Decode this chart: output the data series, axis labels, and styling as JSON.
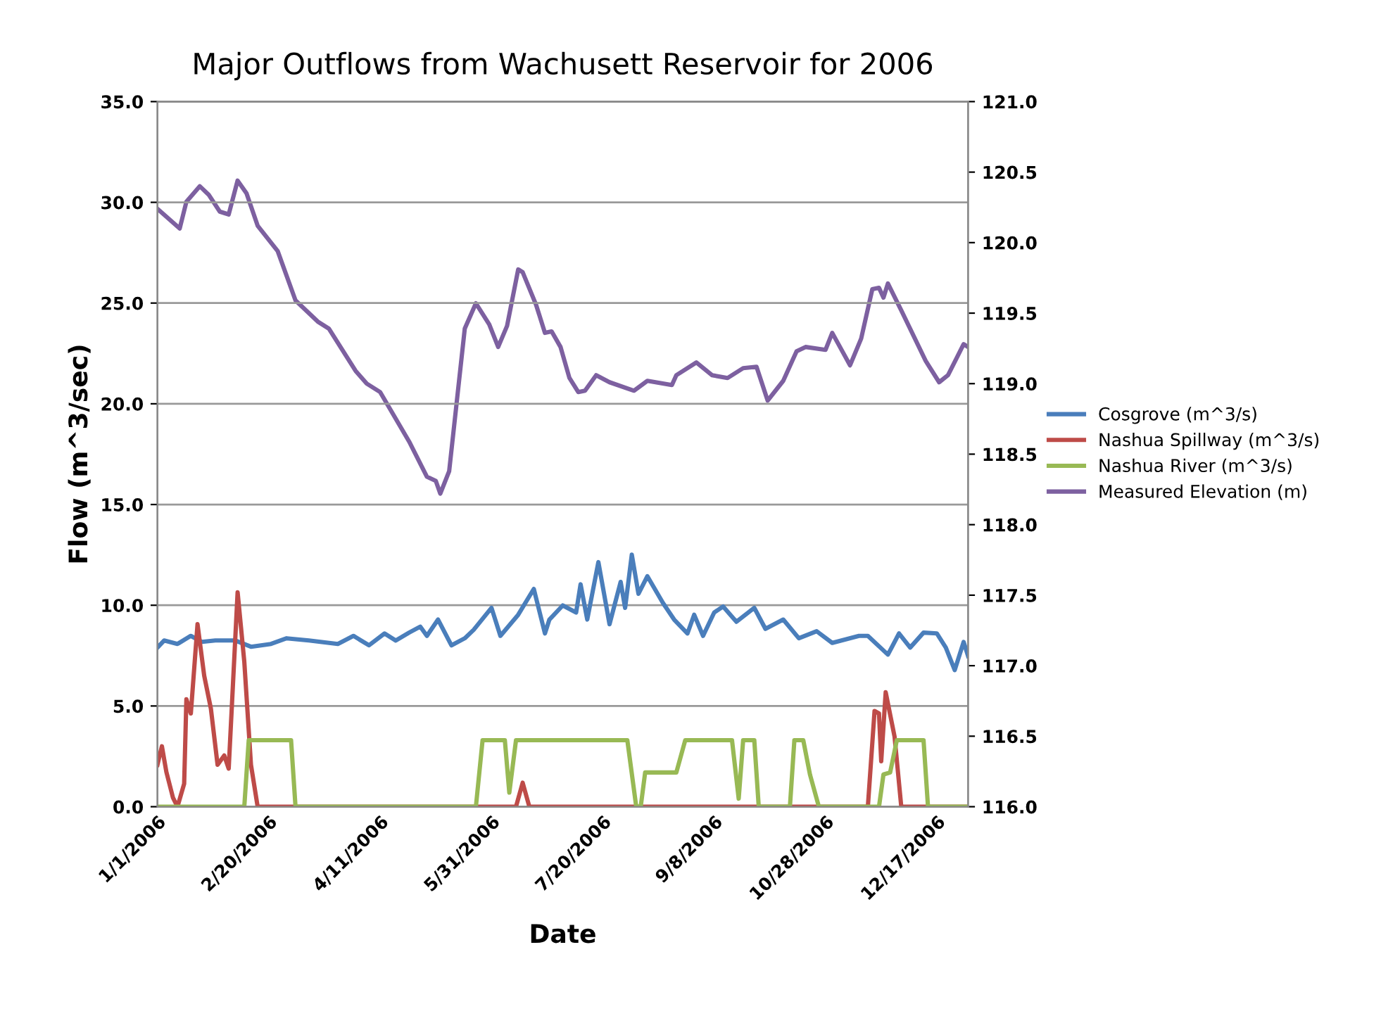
{
  "chart_data": {
    "type": "line",
    "title": "Major Outflows from Wachusett Reservoir for 2006",
    "xlabel": "Date",
    "ylabel": "Flow (m^3/sec)",
    "xlim": [
      "2006-01-01",
      "2006-12-31"
    ],
    "xticks": [
      {
        "value": "2006-01-01",
        "label": "1/1/2006"
      },
      {
        "value": "2006-02-20",
        "label": "2/20/2006"
      },
      {
        "value": "2006-04-11",
        "label": "4/11/2006"
      },
      {
        "value": "2006-05-31",
        "label": "5/31/2006"
      },
      {
        "value": "2006-07-20",
        "label": "7/20/2006"
      },
      {
        "value": "2006-09-08",
        "label": "9/8/2006"
      },
      {
        "value": "2006-10-28",
        "label": "10/28/2006"
      },
      {
        "value": "2006-12-17",
        "label": "12/17/2006"
      }
    ],
    "ylim": [
      0,
      35
    ],
    "yticks": [
      {
        "value": 0,
        "label": "0.0"
      },
      {
        "value": 5,
        "label": "5.0"
      },
      {
        "value": 10,
        "label": "10.0"
      },
      {
        "value": 15,
        "label": "15.0"
      },
      {
        "value": 20,
        "label": "20.0"
      },
      {
        "value": 25,
        "label": "25.0"
      },
      {
        "value": 30,
        "label": "30.0"
      },
      {
        "value": 35,
        "label": "35.0"
      }
    ],
    "y2lim": [
      116,
      121
    ],
    "y2ticks": [
      {
        "value": 116,
        "label": "116.0"
      },
      {
        "value": 116.5,
        "label": "116.5"
      },
      {
        "value": 117,
        "label": "117.0"
      },
      {
        "value": 117.5,
        "label": "117.5"
      },
      {
        "value": 118,
        "label": "118.0"
      },
      {
        "value": 118.5,
        "label": "118.5"
      },
      {
        "value": 119,
        "label": "119.0"
      },
      {
        "value": 119.5,
        "label": "119.5"
      },
      {
        "value": 120,
        "label": "120.0"
      },
      {
        "value": 120.5,
        "label": "120.5"
      },
      {
        "value": 121,
        "label": "121.0"
      }
    ],
    "grid": "y",
    "legend": "right",
    "marker": "none",
    "line_style": "solid",
    "series": [
      {
        "name": "Cosgrove (m^3/s)",
        "color": "#4a7ebb",
        "x": [
          "2006-01-01",
          "2006-01-04",
          "2006-01-10",
          "2006-01-16",
          "2006-01-21",
          "2006-01-27",
          "2006-02-05",
          "2006-02-12",
          "2006-02-21",
          "2006-02-28",
          "2006-03-10",
          "2006-03-23",
          "2006-03-30",
          "2006-04-06",
          "2006-04-13",
          "2006-04-18",
          "2006-04-24",
          "2006-04-29",
          "2006-05-02",
          "2006-05-07",
          "2006-05-13",
          "2006-05-19",
          "2006-05-23",
          "2006-05-31",
          "2006-06-04",
          "2006-06-12",
          "2006-06-19",
          "2006-06-24",
          "2006-06-26",
          "2006-07-02",
          "2006-07-08",
          "2006-07-10",
          "2006-07-13",
          "2006-07-18",
          "2006-07-23",
          "2006-07-28",
          "2006-07-30",
          "2006-08-02",
          "2006-08-05",
          "2006-08-09",
          "2006-08-16",
          "2006-08-21",
          "2006-08-27",
          "2006-08-30",
          "2006-09-03",
          "2006-09-08",
          "2006-09-12",
          "2006-09-18",
          "2006-09-26",
          "2006-10-01",
          "2006-10-09",
          "2006-10-16",
          "2006-10-24",
          "2006-10-31",
          "2006-11-12",
          "2006-11-16",
          "2006-11-25",
          "2006-11-30",
          "2006-12-05",
          "2006-12-11",
          "2006-12-17",
          "2006-12-21",
          "2006-12-25",
          "2006-12-29",
          "2006-12-31"
        ],
        "values": [
          7.9,
          8.25,
          8.08,
          8.48,
          8.18,
          8.25,
          8.25,
          7.94,
          8.08,
          8.36,
          8.25,
          8.08,
          8.48,
          8.01,
          8.6,
          8.25,
          8.64,
          8.94,
          8.48,
          9.29,
          8.01,
          8.36,
          8.78,
          9.87,
          8.48,
          9.53,
          10.81,
          8.6,
          9.29,
          9.99,
          9.64,
          11.04,
          9.29,
          12.14,
          9.06,
          11.16,
          9.87,
          12.51,
          10.57,
          11.44,
          10.11,
          9.29,
          8.6,
          9.53,
          8.48,
          9.64,
          9.94,
          9.18,
          9.87,
          8.83,
          9.29,
          8.36,
          8.71,
          8.13,
          8.48,
          8.48,
          7.55,
          8.6,
          7.9,
          8.64,
          8.6,
          7.9,
          6.78,
          8.18,
          7.48
        ]
      },
      {
        "name": "Nashua Spillway (m^3/s)",
        "color": "#be4b48",
        "x": [
          "2006-01-01",
          "2006-01-03",
          "2006-01-05",
          "2006-01-08",
          "2006-01-10",
          "2006-01-13",
          "2006-01-14",
          "2006-01-16",
          "2006-01-19",
          "2006-01-22",
          "2006-01-25",
          "2006-01-28",
          "2006-01-31",
          "2006-02-02",
          "2006-02-06",
          "2006-02-09",
          "2006-02-12",
          "2006-02-15",
          "2006-06-11",
          "2006-06-14",
          "2006-06-17",
          "2006-11-16",
          "2006-11-19",
          "2006-11-21",
          "2006-11-22",
          "2006-11-24",
          "2006-11-28",
          "2006-12-01",
          "2006-12-31"
        ],
        "values": [
          2.08,
          3.0,
          1.73,
          0.44,
          0,
          1.14,
          5.33,
          4.63,
          9.06,
          6.5,
          4.87,
          2.08,
          2.54,
          1.89,
          10.64,
          7.2,
          2.08,
          0,
          0,
          1.19,
          0,
          0,
          4.75,
          4.63,
          2.26,
          5.68,
          3.47,
          0,
          0
        ]
      },
      {
        "name": "Nashua River (m^3/s)",
        "color": "#98b954",
        "x": [
          "2006-01-01",
          "2006-02-09",
          "2006-02-11",
          "2006-03-02",
          "2006-03-04",
          "2006-05-24",
          "2006-05-27",
          "2006-06-06",
          "2006-06-08",
          "2006-06-11",
          "2006-07-31",
          "2006-08-04",
          "2006-08-06",
          "2006-08-08",
          "2006-08-22",
          "2006-08-26",
          "2006-09-16",
          "2006-09-19",
          "2006-09-21",
          "2006-09-26",
          "2006-09-28",
          "2006-10-12",
          "2006-10-14",
          "2006-10-18",
          "2006-10-21",
          "2006-10-25",
          "2006-11-21",
          "2006-11-23",
          "2006-11-26",
          "2006-11-29",
          "2006-12-11",
          "2006-12-13",
          "2006-12-31"
        ],
        "values": [
          0,
          0,
          3.3,
          3.3,
          0,
          0,
          3.3,
          3.3,
          0.7,
          3.3,
          3.3,
          0,
          0,
          1.7,
          1.7,
          3.3,
          3.3,
          0.4,
          3.3,
          3.3,
          0,
          0,
          3.3,
          3.3,
          1.6,
          0,
          0,
          1.6,
          1.7,
          3.3,
          3.3,
          0,
          0
        ]
      },
      {
        "name": "Measured Elevation (m)",
        "color": "#7d60a0",
        "axis": "y2",
        "x": [
          "2006-01-01",
          "2006-01-11",
          "2006-01-14",
          "2006-01-20",
          "2006-01-24",
          "2006-01-29",
          "2006-02-02",
          "2006-02-06",
          "2006-02-10",
          "2006-02-15",
          "2006-02-24",
          "2006-03-04",
          "2006-03-14",
          "2006-03-19",
          "2006-03-31",
          "2006-04-05",
          "2006-04-11",
          "2006-04-24",
          "2006-05-02",
          "2006-05-06",
          "2006-05-08",
          "2006-05-12",
          "2006-05-19",
          "2006-05-24",
          "2006-05-30",
          "2006-06-03",
          "2006-06-07",
          "2006-06-12",
          "2006-06-14",
          "2006-06-20",
          "2006-06-24",
          "2006-06-27",
          "2006-07-01",
          "2006-07-05",
          "2006-07-09",
          "2006-07-12",
          "2006-07-17",
          "2006-07-23",
          "2006-08-03",
          "2006-08-09",
          "2006-08-20",
          "2006-08-22",
          "2006-08-31",
          "2006-09-07",
          "2006-09-14",
          "2006-09-21",
          "2006-09-27",
          "2006-10-02",
          "2006-10-09",
          "2006-10-15",
          "2006-10-19",
          "2006-10-28",
          "2006-10-31",
          "2006-11-08",
          "2006-11-13",
          "2006-11-18",
          "2006-11-21",
          "2006-11-23",
          "2006-11-25",
          "2006-12-01",
          "2006-12-12",
          "2006-12-18",
          "2006-12-22",
          "2006-12-29",
          "2006-12-31"
        ],
        "values": [
          120.24,
          120.1,
          120.29,
          120.4,
          120.34,
          120.22,
          120.2,
          120.44,
          120.35,
          120.12,
          119.94,
          119.59,
          119.44,
          119.39,
          119.09,
          119.0,
          118.94,
          118.59,
          118.34,
          118.31,
          118.22,
          118.38,
          119.39,
          119.57,
          119.42,
          119.26,
          119.41,
          119.81,
          119.79,
          119.56,
          119.36,
          119.37,
          119.26,
          119.04,
          118.94,
          118.95,
          119.06,
          119.01,
          118.95,
          119.02,
          118.99,
          119.06,
          119.15,
          119.06,
          119.04,
          119.11,
          119.12,
          118.88,
          119.02,
          119.23,
          119.26,
          119.24,
          119.36,
          119.13,
          119.32,
          119.67,
          119.68,
          119.61,
          119.71,
          119.52,
          119.16,
          119.01,
          119.06,
          119.28,
          119.26
        ]
      }
    ]
  }
}
